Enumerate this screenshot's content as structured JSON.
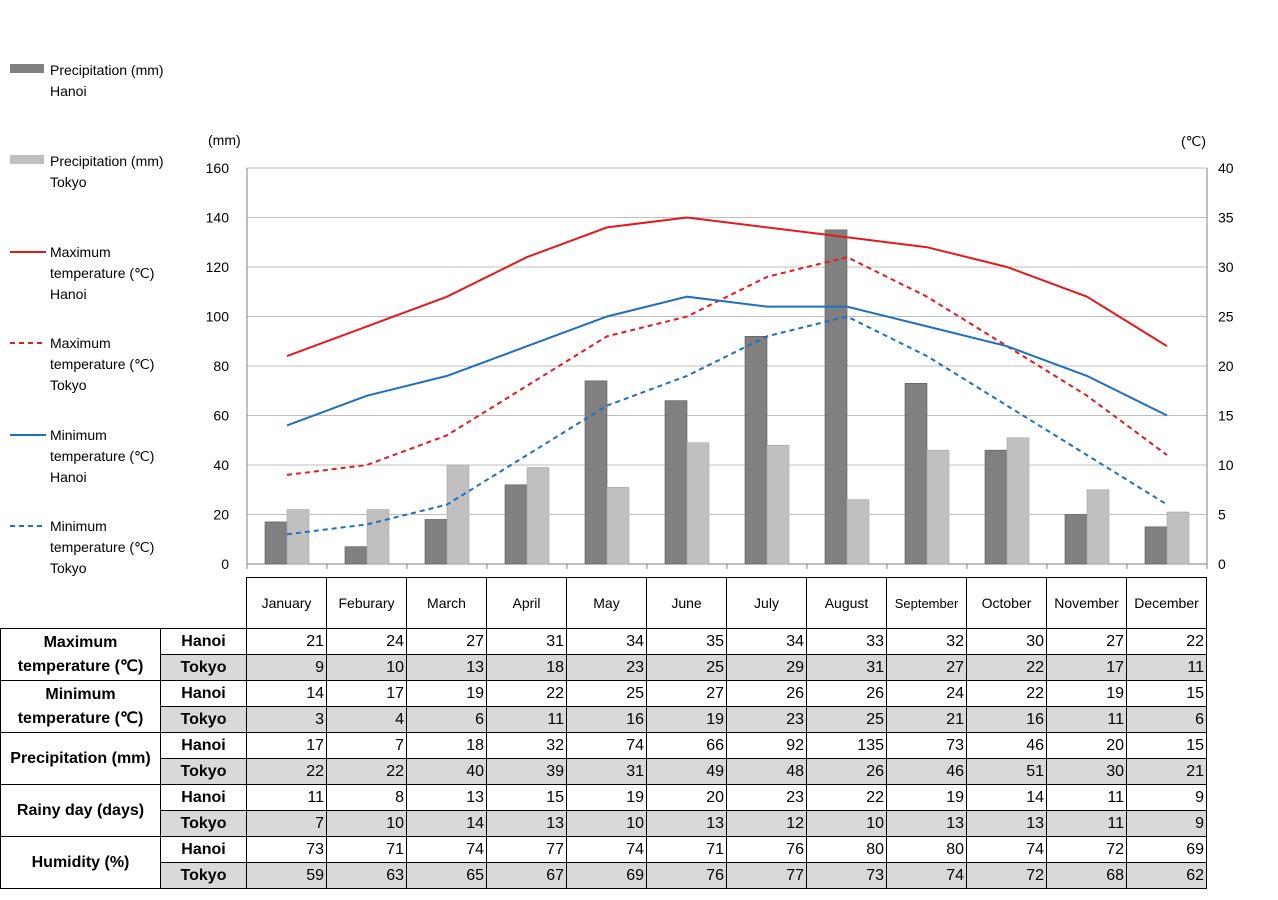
{
  "chart_data": {
    "type": "bar",
    "categories": [
      "January",
      "Feburary",
      "March",
      "April",
      "May",
      "June",
      "July",
      "August",
      "September",
      "October",
      "November",
      "December"
    ],
    "y_left": {
      "unit_label": "(mm)",
      "range": [
        0,
        160
      ],
      "ticks": [
        0,
        20,
        40,
        60,
        80,
        100,
        120,
        140,
        160
      ]
    },
    "y_right": {
      "unit_label": "(℃)",
      "range": [
        0,
        40
      ],
      "ticks": [
        0,
        5,
        10,
        15,
        20,
        25,
        30,
        35,
        40
      ]
    },
    "grid": true,
    "series": [
      {
        "name": "Precipitation (mm) Hanoi",
        "legend_lines": [
          "Precipitation (mm)",
          "Hanoi"
        ],
        "kind": "bar",
        "axis": "left",
        "color": "#808080",
        "values": [
          17,
          7,
          18,
          32,
          74,
          66,
          92,
          135,
          73,
          46,
          20,
          15
        ]
      },
      {
        "name": "Precipitation (mm) Tokyo",
        "legend_lines": [
          "Precipitation (mm)",
          "Tokyo"
        ],
        "kind": "bar",
        "axis": "left",
        "color": "#c0c0c0",
        "values": [
          22,
          22,
          40,
          39,
          31,
          49,
          48,
          26,
          46,
          51,
          30,
          21
        ]
      },
      {
        "name": "Maximum temperature (℃) Hanoi",
        "legend_lines": [
          "Maximum",
          "temperature (℃)",
          "Hanoi"
        ],
        "kind": "line",
        "axis": "right",
        "color": "#e31a1c",
        "dash": false,
        "values": [
          21,
          24,
          27,
          31,
          34,
          35,
          34,
          33,
          32,
          30,
          27,
          22
        ]
      },
      {
        "name": "Maximum temperature (℃) Tokyo",
        "legend_lines": [
          "Maximum",
          "temperature (℃)",
          "Tokyo"
        ],
        "kind": "line",
        "axis": "right",
        "color": "#e31a1c",
        "dash": true,
        "values": [
          9,
          10,
          13,
          18,
          23,
          25,
          29,
          31,
          27,
          22,
          17,
          11
        ]
      },
      {
        "name": "Minimum temperature (℃) Hanoi",
        "legend_lines": [
          "Minimum",
          "temperature (℃)",
          "Hanoi"
        ],
        "kind": "line",
        "axis": "right",
        "color": "#1f6fbf",
        "dash": false,
        "values": [
          14,
          17,
          19,
          22,
          25,
          27,
          26,
          26,
          24,
          22,
          19,
          15
        ]
      },
      {
        "name": "Minimum temperature (℃) Tokyo",
        "legend_lines": [
          "Minimum",
          "temperature (℃)",
          "Tokyo"
        ],
        "kind": "line",
        "axis": "right",
        "color": "#1f6fbf",
        "dash": true,
        "values": [
          3,
          4,
          6,
          11,
          16,
          19,
          23,
          25,
          21,
          16,
          11,
          6
        ]
      }
    ]
  },
  "table": {
    "months": [
      "January",
      "Feburary",
      "March",
      "April",
      "May",
      "June",
      "July",
      "August",
      "September",
      "October",
      "November",
      "December"
    ],
    "metrics": [
      {
        "label": "Maximum temperature (℃)",
        "rows": [
          {
            "city": "Hanoi",
            "values": [
              21,
              24,
              27,
              31,
              34,
              35,
              34,
              33,
              32,
              30,
              27,
              22
            ]
          },
          {
            "city": "Tokyo",
            "values": [
              9,
              10,
              13,
              18,
              23,
              25,
              29,
              31,
              27,
              22,
              17,
              11
            ]
          }
        ]
      },
      {
        "label": "Minimum temperature (℃)",
        "rows": [
          {
            "city": "Hanoi",
            "values": [
              14,
              17,
              19,
              22,
              25,
              27,
              26,
              26,
              24,
              22,
              19,
              15
            ]
          },
          {
            "city": "Tokyo",
            "values": [
              3,
              4,
              6,
              11,
              16,
              19,
              23,
              25,
              21,
              16,
              11,
              6
            ]
          }
        ]
      },
      {
        "label": "Precipitation (mm)",
        "rows": [
          {
            "city": "Hanoi",
            "values": [
              17,
              7,
              18,
              32,
              74,
              66,
              92,
              135,
              73,
              46,
              20,
              15
            ]
          },
          {
            "city": "Tokyo",
            "values": [
              22,
              22,
              40,
              39,
              31,
              49,
              48,
              26,
              46,
              51,
              30,
              21
            ]
          }
        ]
      },
      {
        "label": "Rainy day (days)",
        "rows": [
          {
            "city": "Hanoi",
            "values": [
              11,
              8,
              13,
              15,
              19,
              20,
              23,
              22,
              19,
              14,
              11,
              9
            ]
          },
          {
            "city": "Tokyo",
            "values": [
              7,
              10,
              14,
              13,
              10,
              13,
              12,
              10,
              13,
              13,
              11,
              9
            ]
          }
        ]
      },
      {
        "label": "Humidity (%)",
        "rows": [
          {
            "city": "Hanoi",
            "values": [
              73,
              71,
              74,
              77,
              74,
              71,
              76,
              80,
              80,
              74,
              72,
              69
            ]
          },
          {
            "city": "Tokyo",
            "values": [
              59,
              63,
              65,
              67,
              69,
              76,
              77,
              73,
              74,
              72,
              68,
              62
            ]
          }
        ]
      }
    ]
  }
}
